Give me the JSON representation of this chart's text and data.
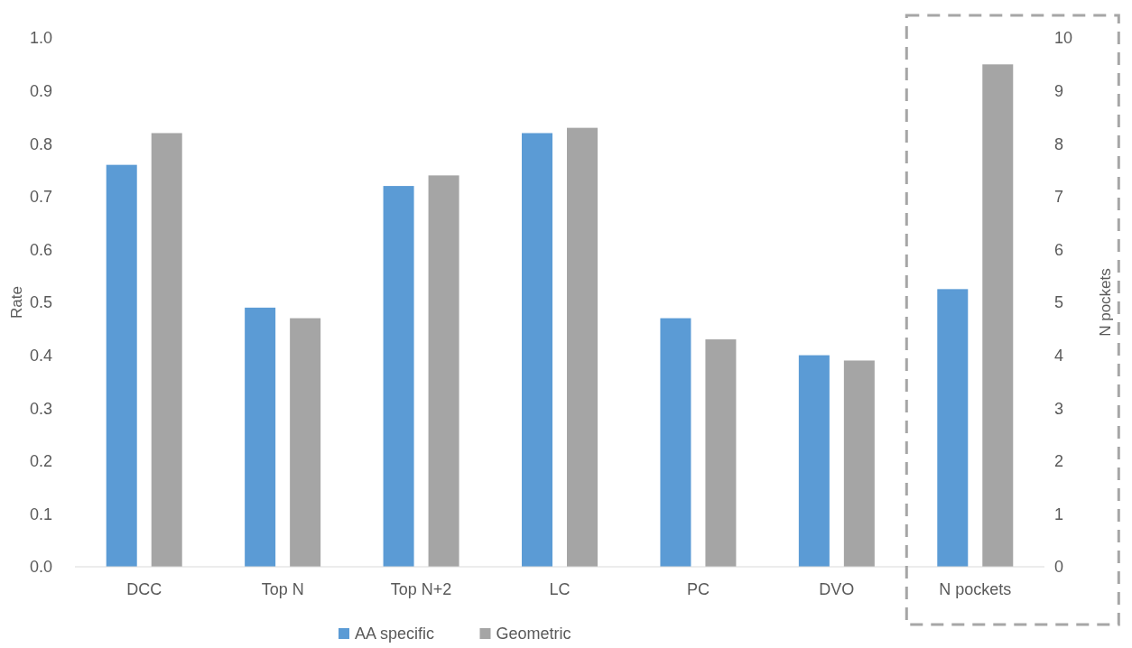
{
  "chart_data": {
    "type": "bar",
    "categories": [
      "DCC",
      "Top N",
      "Top N+2",
      "LC",
      "PC",
      "DVO",
      "N pockets"
    ],
    "ylabel": "Rate",
    "y2label": "N pockets",
    "ylim": [
      0,
      1
    ],
    "yticks": [
      {
        "value": 0,
        "label": "0.0"
      },
      0.1,
      0.2,
      0.3,
      0.4,
      0.5,
      0.6,
      0.7,
      0.8,
      0.9,
      {
        "value": 1,
        "label": "1.0"
      }
    ],
    "y2lim": [
      0,
      10
    ],
    "y2ticks": [
      0,
      1,
      2,
      3,
      4,
      5,
      6,
      7,
      8,
      9,
      10
    ],
    "series": [
      {
        "name": "AA specific",
        "color": "#5b9bd5",
        "values": [
          0.76,
          0.49,
          0.72,
          0.82,
          0.47,
          0.4,
          null
        ]
      },
      {
        "name": "Geometric",
        "color": "#a5a5a5",
        "values": [
          0.82,
          0.47,
          0.74,
          0.83,
          0.43,
          0.39,
          null
        ]
      },
      {
        "color": "#5b9bd5",
        "axis": "y2",
        "values": [
          null,
          null,
          null,
          null,
          null,
          null,
          5.25
        ]
      },
      {
        "color": "#a5a5a5",
        "axis": "y2",
        "values": [
          null,
          null,
          null,
          null,
          null,
          null,
          9.5
        ]
      }
    ],
    "legend": "bottom",
    "grid": false
  }
}
